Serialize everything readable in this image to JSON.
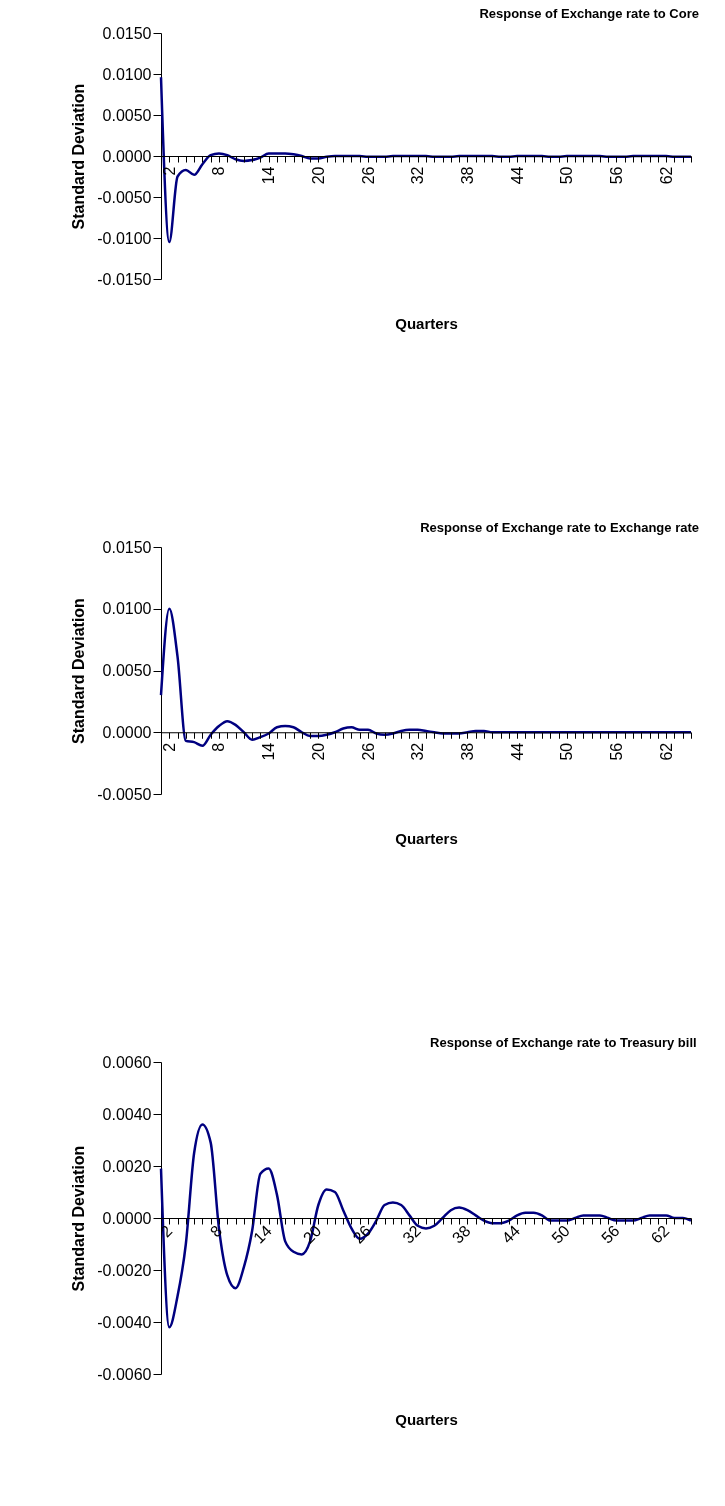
{
  "chart_data": [
    {
      "type": "line",
      "title": "Response of Exchange rate to Core",
      "xlabel": "Quarters",
      "ylabel": "Standard Deviation",
      "categories": [
        null,
        "2",
        null,
        null,
        null,
        null,
        null,
        "8",
        null,
        null,
        null,
        null,
        null,
        "14",
        null,
        null,
        null,
        null,
        null,
        "20",
        null,
        null,
        null,
        null,
        null,
        "26",
        null,
        null,
        null,
        null,
        null,
        "32",
        null,
        null,
        null,
        null,
        null,
        "38",
        null,
        null,
        null,
        null,
        null,
        "44",
        null,
        null,
        null,
        null,
        null,
        "50",
        null,
        null,
        null,
        null,
        null,
        "56",
        null,
        null,
        null,
        null,
        null,
        "62",
        null,
        null,
        null
      ],
      "series": [
        {
          "color": "#000080",
          "values": [
            0.0096,
            -0.0105,
            -0.0025,
            -0.0017,
            -0.0023,
            -0.001,
            0.0001,
            0.0003,
            0.0001,
            -0.0004,
            -0.0006,
            -0.0005,
            -0.0002,
            0.0003,
            0.0003,
            0.0003,
            0.0002,
            0,
            -0.0003,
            -0.0003,
            -0.0001,
            0,
            0,
            0,
            0,
            -0.0001,
            -0.0001,
            -0.0001,
            0,
            0,
            0,
            0,
            0,
            -0.0001,
            -0.0001,
            -0.0001,
            0,
            0,
            0,
            0,
            0,
            -0.0001,
            -0.0001,
            0,
            0,
            0,
            0,
            -0.0001,
            -0.0001,
            0,
            0,
            0,
            0,
            0,
            -0.0001,
            -0.0001,
            -0.0001,
            0,
            0,
            0,
            0,
            0,
            -0.0001,
            -0.0001,
            -0.0001
          ]
        }
      ],
      "ylim": [
        -0.015,
        0.015
      ],
      "yticks": [
        {
          "value": -0.015,
          "label": "-0.0150"
        },
        {
          "value": -0.01,
          "label": "-0.0100"
        },
        {
          "value": -0.005,
          "label": "-0.0050"
        },
        {
          "value": 0,
          "label": "0.0000"
        },
        {
          "value": 0.005,
          "label": "0.0050"
        },
        {
          "value": 0.01,
          "label": "0.0100"
        },
        {
          "value": 0.015,
          "label": "0.0150"
        }
      ]
    },
    {
      "type": "line",
      "title": "Response of Exchange rate to Exchange rate",
      "xlabel": "Quarters",
      "ylabel": "Standard Deviation",
      "categories": [
        null,
        "2",
        null,
        null,
        null,
        null,
        null,
        "8",
        null,
        null,
        null,
        null,
        null,
        "14",
        null,
        null,
        null,
        null,
        null,
        "20",
        null,
        null,
        null,
        null,
        null,
        "26",
        null,
        null,
        null,
        null,
        null,
        "32",
        null,
        null,
        null,
        null,
        null,
        "38",
        null,
        null,
        null,
        null,
        null,
        "44",
        null,
        null,
        null,
        null,
        null,
        "50",
        null,
        null,
        null,
        null,
        null,
        "56",
        null,
        null,
        null,
        null,
        null,
        "62",
        null,
        null,
        null
      ],
      "series": [
        {
          "color": "#000080",
          "values": [
            0.003,
            0.01,
            0.0061,
            -0.0007,
            -0.0008,
            -0.0011,
            -0.0002,
            0.0005,
            0.0009,
            0.0006,
            0,
            -0.0006,
            -0.0004,
            -0.0001,
            0.0004,
            0.0005,
            0.0004,
            0,
            -0.0003,
            -0.0003,
            -0.0002,
            0,
            0.0003,
            0.0004,
            0.0002,
            0.0002,
            -0.0001,
            -0.0002,
            -0.0001,
            0.0001,
            0.0002,
            0.0002,
            0.0001,
            0,
            -0.0001,
            -0.0001,
            -0.0001,
            0,
            0.0001,
            0.0001,
            0,
            0,
            0,
            0,
            0,
            0,
            0,
            0,
            0,
            0,
            0,
            0,
            0,
            0,
            0,
            0,
            0,
            0,
            0,
            0,
            0,
            0,
            0,
            0,
            0
          ]
        }
      ],
      "ylim": [
        -0.005,
        0.015
      ],
      "yticks": [
        {
          "value": -0.005,
          "label": "-0.0050"
        },
        {
          "value": 0,
          "label": "0.0000"
        },
        {
          "value": 0.005,
          "label": "0.0050"
        },
        {
          "value": 0.01,
          "label": "0.0100"
        },
        {
          "value": 0.015,
          "label": "0.0150"
        }
      ]
    },
    {
      "type": "line",
      "title": "Response of Exchange rate to Treasury bill",
      "xlabel": "Quarters",
      "ylabel": "Standard Deviation",
      "categories": [
        null,
        "2",
        null,
        null,
        null,
        null,
        null,
        "8",
        null,
        null,
        null,
        null,
        null,
        "14",
        null,
        null,
        null,
        null,
        null,
        "20",
        null,
        null,
        null,
        null,
        null,
        "26",
        null,
        null,
        null,
        null,
        null,
        "32",
        null,
        null,
        null,
        null,
        null,
        "38",
        null,
        null,
        null,
        null,
        null,
        "44",
        null,
        null,
        null,
        null,
        null,
        "50",
        null,
        null,
        null,
        null,
        null,
        "56",
        null,
        null,
        null,
        null,
        null,
        "62",
        null,
        null,
        null
      ],
      "series": [
        {
          "color": "#000080",
          "values": [
            0.0019,
            -0.0042,
            -0.003,
            -0.001,
            0.0025,
            0.0036,
            0.0029,
            -0.0004,
            -0.0022,
            -0.0027,
            -0.0019,
            -0.0005,
            0.0017,
            0.0019,
            0.0009,
            -0.0009,
            -0.0013,
            -0.0014,
            -0.0009,
            0.0005,
            0.0011,
            0.001,
            0.0003,
            -0.0004,
            -0.0008,
            -0.0006,
            -0.0001,
            0.0005,
            0.0006,
            0.0005,
            0.0001,
            -0.0003,
            -0.0004,
            -0.0003,
            0,
            0.0003,
            0.0004,
            0.0003,
            0.0001,
            -0.0001,
            -0.0002,
            -0.0002,
            -0.0001,
            0.0001,
            0.0002,
            0.0002,
            0.0001,
            -0.0001,
            -0.0001,
            -0.0001,
            0,
            0.0001,
            0.0001,
            0.0001,
            0,
            -0.0001,
            -0.0001,
            -0.0001,
            0,
            0.0001,
            0.0001,
            0.0001,
            0,
            0,
            -0.0001
          ]
        }
      ],
      "ylim": [
        -0.006,
        0.006
      ],
      "yticks": [
        {
          "value": -0.006,
          "label": "-0.0060"
        },
        {
          "value": -0.004,
          "label": "-0.0040"
        },
        {
          "value": -0.002,
          "label": "-0.0020"
        },
        {
          "value": 0,
          "label": "0.0000"
        },
        {
          "value": 0.002,
          "label": "0.0020"
        },
        {
          "value": 0.004,
          "label": "0.0040"
        },
        {
          "value": 0.006,
          "label": "0.0060"
        }
      ]
    }
  ]
}
